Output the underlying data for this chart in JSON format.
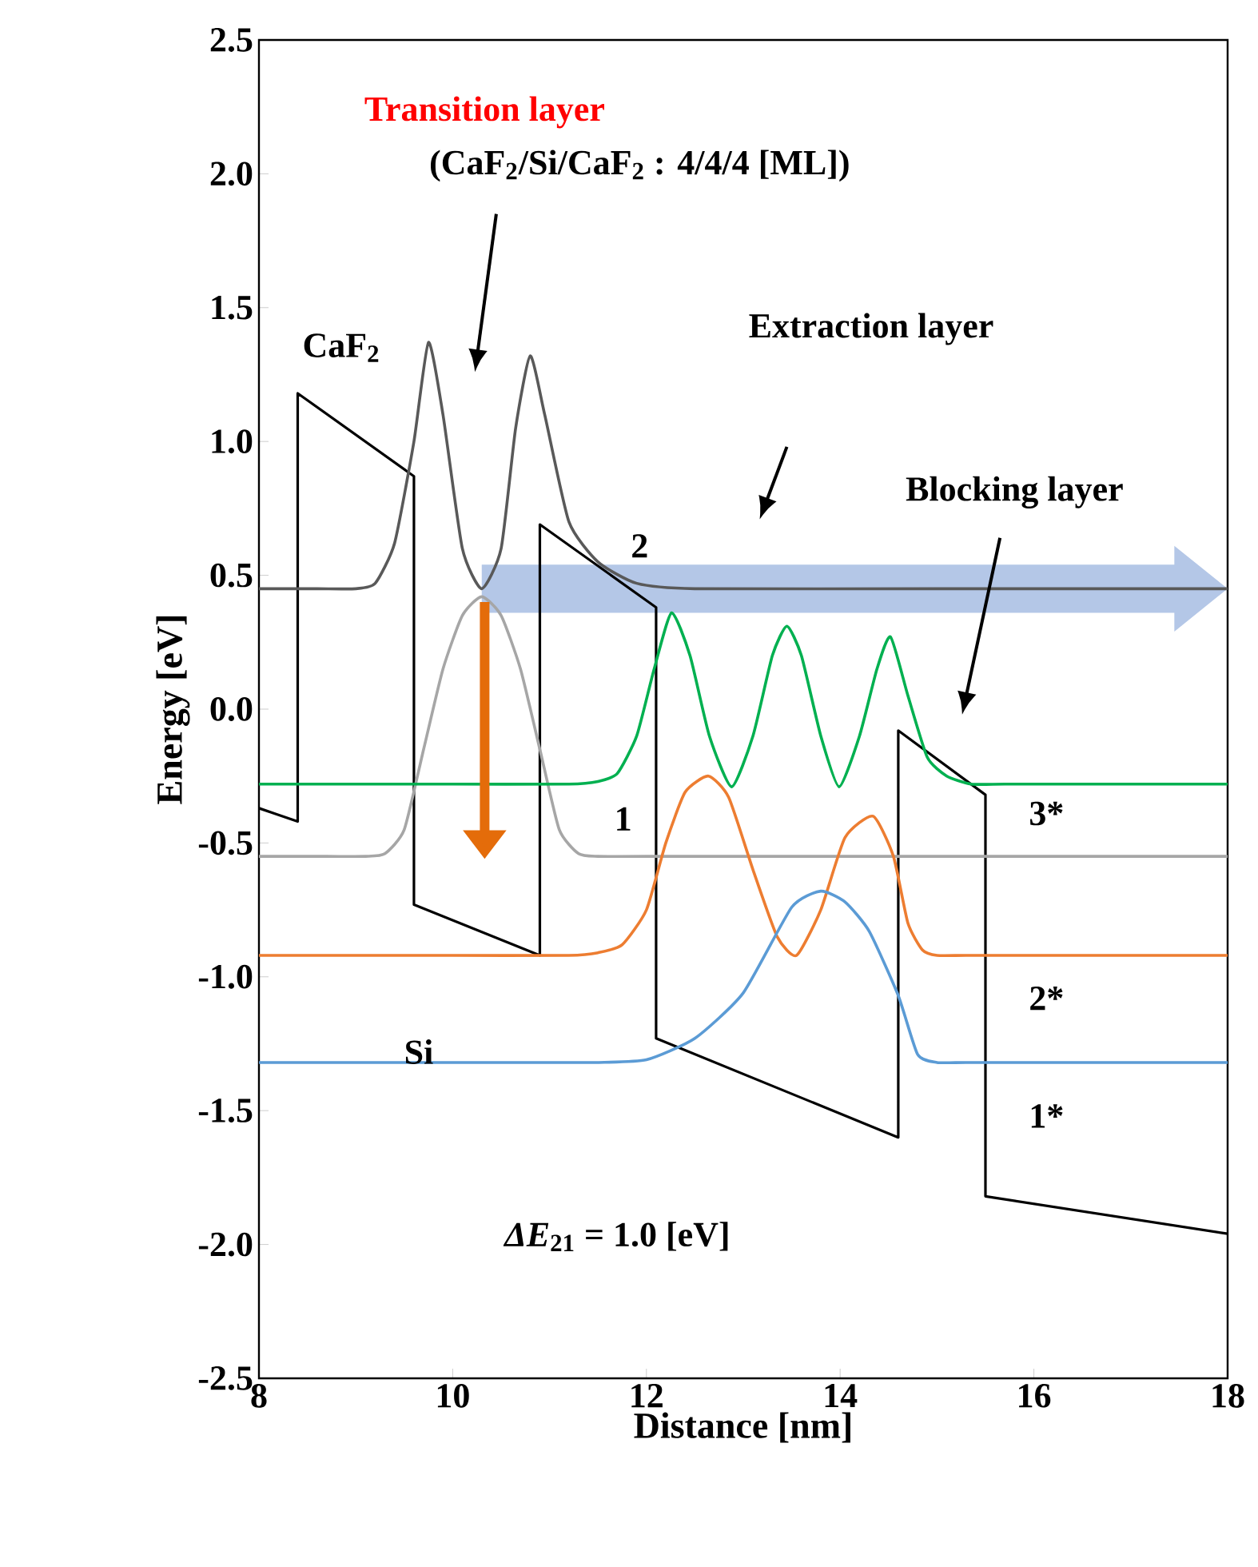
{
  "chart_data": {
    "type": "line",
    "xlabel": "Distance [nm]",
    "ylabel": "Energy [eV]",
    "xlim": [
      8,
      18
    ],
    "ylim": [
      -2.5,
      2.5
    ],
    "xticks": [
      8,
      10,
      12,
      14,
      16,
      18
    ],
    "yticks": [
      {
        "value": -2.5,
        "label": "-2.5"
      },
      {
        "value": -2,
        "label": "-2.0"
      },
      {
        "value": -1.5,
        "label": "-1.5"
      },
      {
        "value": -1,
        "label": "-1.0"
      },
      {
        "value": -0.5,
        "label": "-0.5"
      },
      {
        "value": 0,
        "label": "0.0"
      },
      {
        "value": 0.5,
        "label": "0.5"
      },
      {
        "value": 1,
        "label": "1.0"
      },
      {
        "value": 1.5,
        "label": "1.5"
      },
      {
        "value": 2,
        "label": "2.0"
      },
      {
        "value": 2.5,
        "label": "2.5"
      }
    ],
    "series": [
      {
        "color": "#000000",
        "x": [
          8,
          8.4,
          8.4,
          9.6,
          9.6,
          10.9,
          10.9,
          12.1,
          12.1,
          14.6,
          14.6,
          15.5,
          15.5,
          18
        ],
        "values": [
          -0.37,
          -0.42,
          1.18,
          0.87,
          -0.73,
          -0.92,
          0.69,
          0.38,
          -1.23,
          -1.6,
          -0.08,
          -0.32,
          -1.82,
          -1.96
        ]
      },
      {
        "name": "2",
        "color": "#595959",
        "x": [
          8,
          8.6,
          9.0,
          9.2,
          9.4,
          9.6,
          9.75,
          9.9,
          10.1,
          10.3,
          10.5,
          10.65,
          10.8,
          10.95,
          11.2,
          11.5,
          11.9,
          12.5,
          15,
          18
        ],
        "values": [
          0.45,
          0.45,
          0.45,
          0.47,
          0.62,
          1.0,
          1.37,
          1.1,
          0.6,
          0.45,
          0.6,
          1.05,
          1.32,
          1.1,
          0.7,
          0.55,
          0.47,
          0.45,
          0.45,
          0.45
        ]
      },
      {
        "name": "1",
        "color": "#a6a6a6",
        "x": [
          8,
          8.7,
          9.1,
          9.3,
          9.5,
          9.7,
          9.9,
          10.1,
          10.3,
          10.5,
          10.7,
          10.9,
          11.1,
          11.3,
          11.5,
          12,
          15,
          18
        ],
        "values": [
          -0.55,
          -0.55,
          -0.55,
          -0.54,
          -0.45,
          -0.15,
          0.15,
          0.35,
          0.42,
          0.35,
          0.15,
          -0.15,
          -0.45,
          -0.54,
          -0.55,
          -0.55,
          -0.55,
          -0.55
        ]
      },
      {
        "name": "3*",
        "color": "#00b050",
        "x": [
          8,
          10,
          11.2,
          11.5,
          11.7,
          11.9,
          12.08,
          12.26,
          12.45,
          12.65,
          12.88,
          13.1,
          13.3,
          13.45,
          13.6,
          13.8,
          13.99,
          14.2,
          14.38,
          14.52,
          14.7,
          14.9,
          15.1,
          15.35,
          15.7,
          16.5,
          18
        ],
        "values": [
          -0.28,
          -0.28,
          -0.28,
          -0.27,
          -0.24,
          -0.1,
          0.15,
          0.36,
          0.2,
          -0.1,
          -0.29,
          -0.1,
          0.2,
          0.31,
          0.2,
          -0.1,
          -0.29,
          -0.1,
          0.15,
          0.27,
          0.05,
          -0.18,
          -0.25,
          -0.28,
          -0.28,
          -0.28,
          -0.28
        ]
      },
      {
        "name": "2*",
        "color": "#ed7d31",
        "x": [
          8,
          10,
          11.2,
          11.5,
          11.75,
          12.0,
          12.2,
          12.4,
          12.64,
          12.85,
          13.1,
          13.35,
          13.55,
          13.8,
          14.05,
          14.34,
          14.55,
          14.7,
          14.85,
          15.0,
          15.3,
          16,
          18
        ],
        "values": [
          -0.92,
          -0.92,
          -0.92,
          -0.91,
          -0.88,
          -0.75,
          -0.5,
          -0.31,
          -0.25,
          -0.33,
          -0.6,
          -0.85,
          -0.92,
          -0.75,
          -0.48,
          -0.4,
          -0.55,
          -0.8,
          -0.9,
          -0.92,
          -0.92,
          -0.92,
          -0.92
        ]
      },
      {
        "name": "1*",
        "color": "#5b9bd5",
        "x": [
          8,
          10,
          11,
          11.5,
          12.0,
          12.5,
          13.0,
          13.5,
          13.8,
          14.05,
          14.3,
          14.6,
          14.8,
          15.0,
          15.3,
          16,
          18
        ],
        "values": [
          -1.32,
          -1.32,
          -1.32,
          -1.32,
          -1.31,
          -1.23,
          -1.06,
          -0.74,
          -0.68,
          -0.72,
          -0.83,
          -1.07,
          -1.29,
          -1.32,
          -1.32,
          -1.32,
          -1.32
        ]
      }
    ],
    "annotations": [
      "Transition layer",
      "(CaF$_{2}$/Si/CaF$_{2}$ : 4/4/4 [ML])",
      "CaF$_{2}$",
      "Extraction layer",
      "Blocking layer",
      "Si",
      "*ΔE*$_{21}$ = 1.0 [eV]"
    ]
  }
}
